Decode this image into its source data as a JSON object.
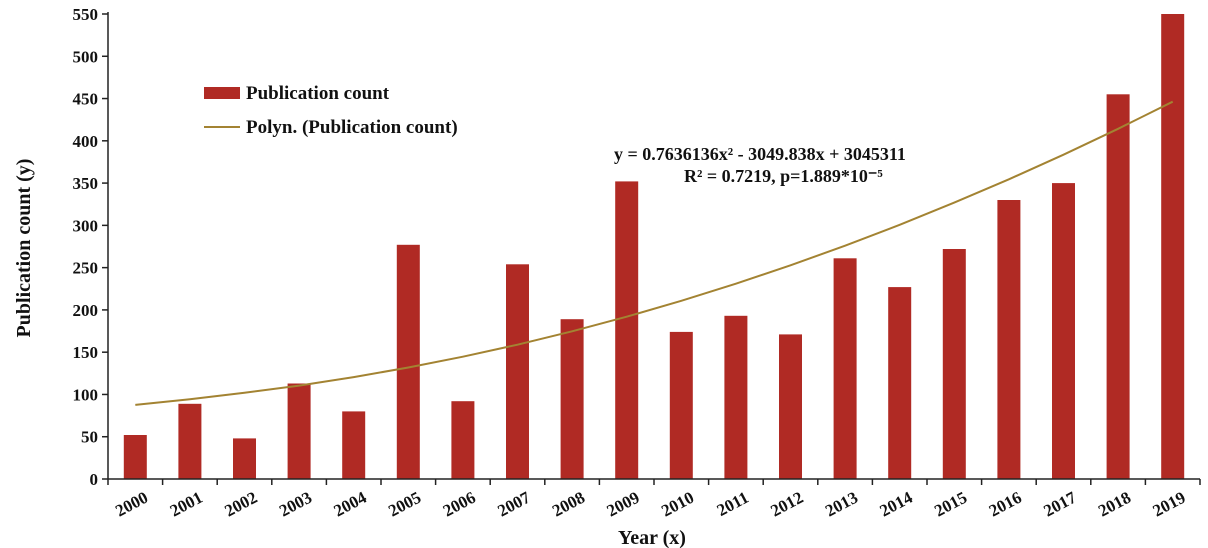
{
  "chart_data": {
    "type": "bar",
    "categories": [
      "2000",
      "2001",
      "2002",
      "2003",
      "2004",
      "2005",
      "2006",
      "2007",
      "2008",
      "2009",
      "2010",
      "2011",
      "2012",
      "2013",
      "2014",
      "2015",
      "2016",
      "2017",
      "2018",
      "2019"
    ],
    "series": [
      {
        "name": "Publication count",
        "values": [
          52,
          89,
          48,
          113,
          80,
          277,
          92,
          254,
          189,
          352,
          174,
          193,
          171,
          261,
          227,
          272,
          330,
          350,
          455,
          550
        ]
      }
    ],
    "trendline": {
      "name": "Polyn. (Publication count)",
      "type": "polynomial",
      "order": 2,
      "equation": "y = 0.7636136x²  - 3049.838x + 3045311",
      "stats": "R² = 0.7219, p=1.889*10⁻⁵",
      "values": [
        87.6,
        94.4,
        101.9,
        110.5,
        120.5,
        131.9,
        144.6,
        158.9,
        174.7,
        192.0,
        210.8,
        231.0,
        252.8,
        276.0,
        300.7,
        326.9,
        354.5,
        383.6,
        414.2,
        446.3
      ]
    },
    "xlabel": "Year (x)",
    "ylabel": "Publication count (y)",
    "ylim": [
      0,
      550
    ],
    "yticks": [
      0,
      50,
      100,
      150,
      200,
      250,
      300,
      350,
      400,
      450,
      500,
      550
    ],
    "grid": false,
    "legend_position": "top-left",
    "colors": {
      "bar": "#b02a24",
      "trendline": "#a38332",
      "axis": "#222222"
    }
  }
}
